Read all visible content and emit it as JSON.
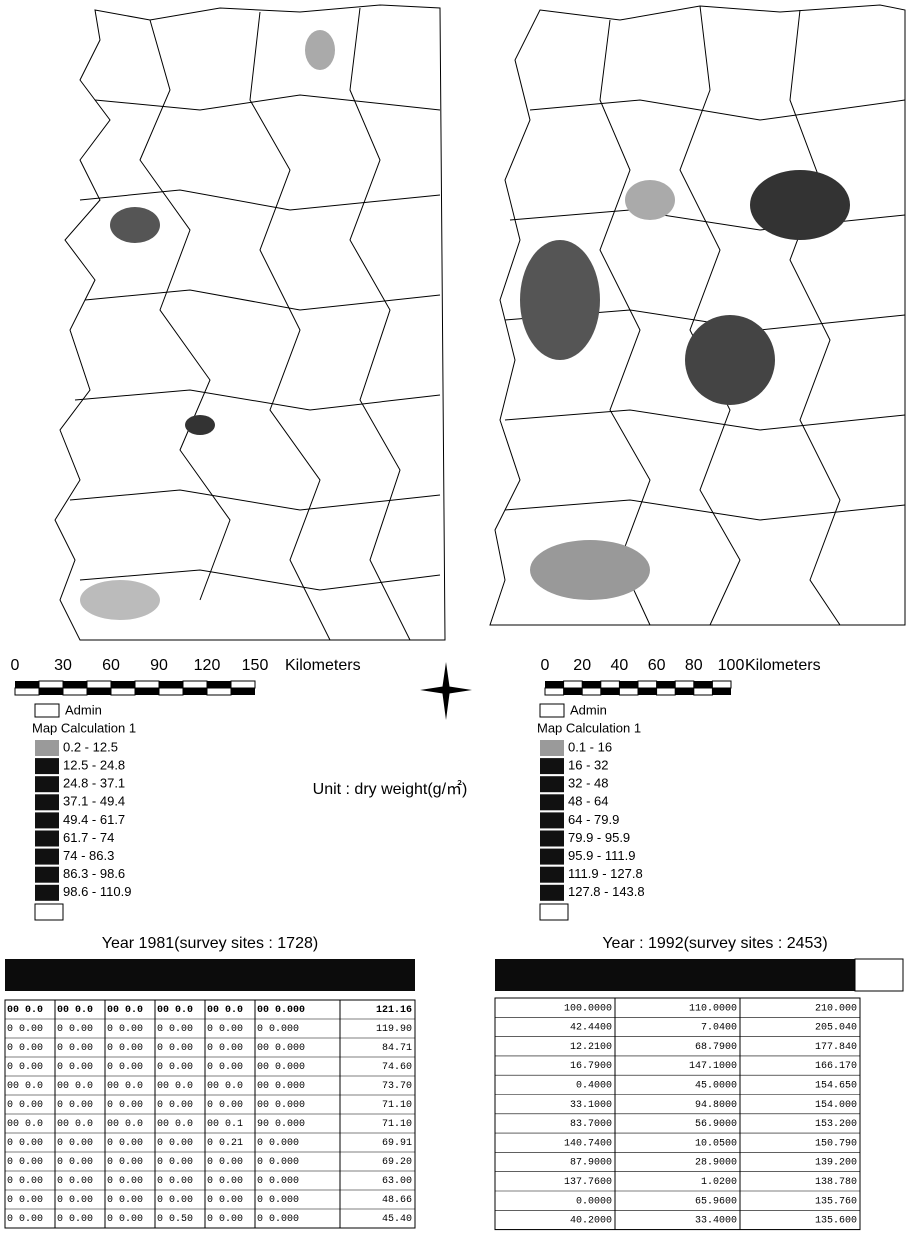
{
  "unit_label": "Unit : dry weight(g/㎡)",
  "panels": [
    {
      "scale_labels": [
        "0",
        "30",
        "60",
        "90",
        "120",
        "150"
      ],
      "scale_unit": "Kilometers",
      "legend": {
        "admin": "Admin",
        "title": "Map Calculation 1",
        "classes": [
          "0.2 - 12.5",
          "12.5 - 24.8",
          "24.8 - 37.1",
          "37.1 - 49.4",
          "49.4 - 61.7",
          "61.7 - 74",
          "74 - 86.3",
          "86.3 - 98.6",
          "98.6 - 110.9"
        ]
      },
      "year_title": "Year 1981(survey sites : 1728)",
      "table": {
        "rows": [
          [
            "00 0.0",
            "00 0.0",
            "00 0.0",
            "00 0.0",
            "00 0.0",
            "00 0.000",
            "121.16"
          ],
          [
            "0 0.00",
            "0 0.00",
            "0 0.00",
            "0 0.00",
            "0 0.00",
            "0 0.000",
            "119.90"
          ],
          [
            "0 0.00",
            "0 0.00",
            "0 0.00",
            "0 0.00",
            "0 0.00",
            "00 0.000",
            "84.71"
          ],
          [
            "0 0.00",
            "0 0.00",
            "0 0.00",
            "0 0.00",
            "0 0.00",
            "00 0.000",
            "74.60"
          ],
          [
            "00 0.0",
            "00 0.0",
            "00 0.0",
            "00 0.0",
            "00 0.0",
            "00 0.000",
            "73.70"
          ],
          [
            "0 0.00",
            "0 0.00",
            "0 0.00",
            "0 0.00",
            "0 0.00",
            "00 0.000",
            "71.10"
          ],
          [
            "00 0.0",
            "00 0.0",
            "00 0.0",
            "00 0.0",
            "00 0.1",
            "90 0.000",
            "71.10"
          ],
          [
            "0 0.00",
            "0 0.00",
            "0 0.00",
            "0 0.00",
            "0 0.21",
            "0 0.000",
            "69.91"
          ],
          [
            "0 0.00",
            "0 0.00",
            "0 0.00",
            "0 0.00",
            "0 0.00",
            "0 0.000",
            "69.20"
          ],
          [
            "0 0.00",
            "0 0.00",
            "0 0.00",
            "0 0.00",
            "0 0.00",
            "0 0.000",
            "63.00"
          ],
          [
            "0 0.00",
            "0 0.00",
            "0 0.00",
            "0 0.00",
            "0 0.00",
            "0 0.000",
            "48.66"
          ],
          [
            "0 0.00",
            "0 0.00",
            "0 0.00",
            "0 0.50",
            "0 0.00",
            "0 0.000",
            "45.40"
          ]
        ]
      }
    },
    {
      "scale_labels": [
        "0",
        "20",
        "40",
        "60",
        "80",
        "100"
      ],
      "scale_unit": "Kilometers",
      "legend": {
        "admin": "Admin",
        "title": "Map Calculation 1",
        "classes": [
          "0.1 - 16",
          "16 - 32",
          "32 - 48",
          "48 - 64",
          "64 - 79.9",
          "79.9 - 95.9",
          "95.9 - 111.9",
          "111.9 - 127.8",
          "127.8 - 143.8"
        ]
      },
      "year_title": "Year : 1992(survey sites : 2453)",
      "table": {
        "rows": [
          [
            "100.0000",
            "110.0000",
            "210.000"
          ],
          [
            "42.4400",
            "7.0400",
            "205.040"
          ],
          [
            "12.2100",
            "68.7900",
            "177.840"
          ],
          [
            "16.7900",
            "147.1000",
            "166.170"
          ],
          [
            "0.4000",
            "45.0000",
            "154.650"
          ],
          [
            "33.1000",
            "94.8000",
            "154.000"
          ],
          [
            "83.7000",
            "56.9000",
            "153.200"
          ],
          [
            "140.7400",
            "10.0500",
            "150.790"
          ],
          [
            "87.9000",
            "28.9000",
            "139.200"
          ],
          [
            "137.7600",
            "1.0200",
            "138.780"
          ],
          [
            "0.0000",
            "65.9600",
            "135.760"
          ],
          [
            "40.2000",
            "33.4000",
            "135.600"
          ]
        ]
      }
    }
  ]
}
